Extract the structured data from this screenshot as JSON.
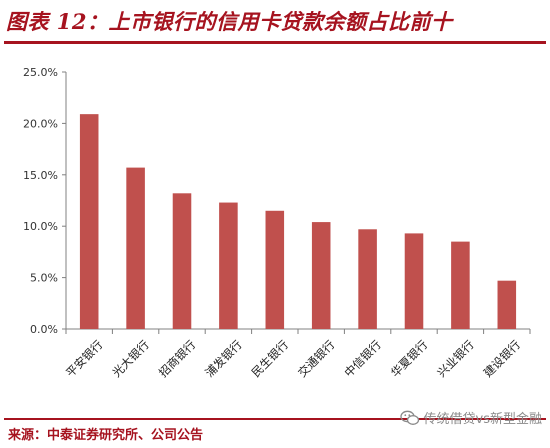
{
  "header": {
    "title": "图表 12：上市银行的信用卡贷款余额占比前十"
  },
  "footer": {
    "source": "来源：中泰证券研究所、公司公告",
    "watermark": "传统借贷vs新型金融",
    "watermark_icon": "wechat-icon"
  },
  "colors": {
    "accent": "#a6131f",
    "bar": "#c0504d",
    "axis": "#808080"
  },
  "chart_data": {
    "type": "bar",
    "title": "",
    "xlabel": "",
    "ylabel": "",
    "categories": [
      "平安银行",
      "光大银行",
      "招商银行",
      "浦发银行",
      "民生银行",
      "交通银行",
      "中信银行",
      "华夏银行",
      "兴业银行",
      "建设银行"
    ],
    "values": [
      0.209,
      0.157,
      0.132,
      0.123,
      0.115,
      0.104,
      0.097,
      0.093,
      0.085,
      0.047
    ],
    "ylim": [
      0,
      0.25
    ],
    "yticks": [
      0,
      0.05,
      0.1,
      0.15,
      0.2,
      0.25
    ],
    "ytick_labels": [
      "0.0%",
      "5.0%",
      "10.0%",
      "15.0%",
      "20.0%",
      "25.0%"
    ],
    "grid": false,
    "legend": "none"
  }
}
